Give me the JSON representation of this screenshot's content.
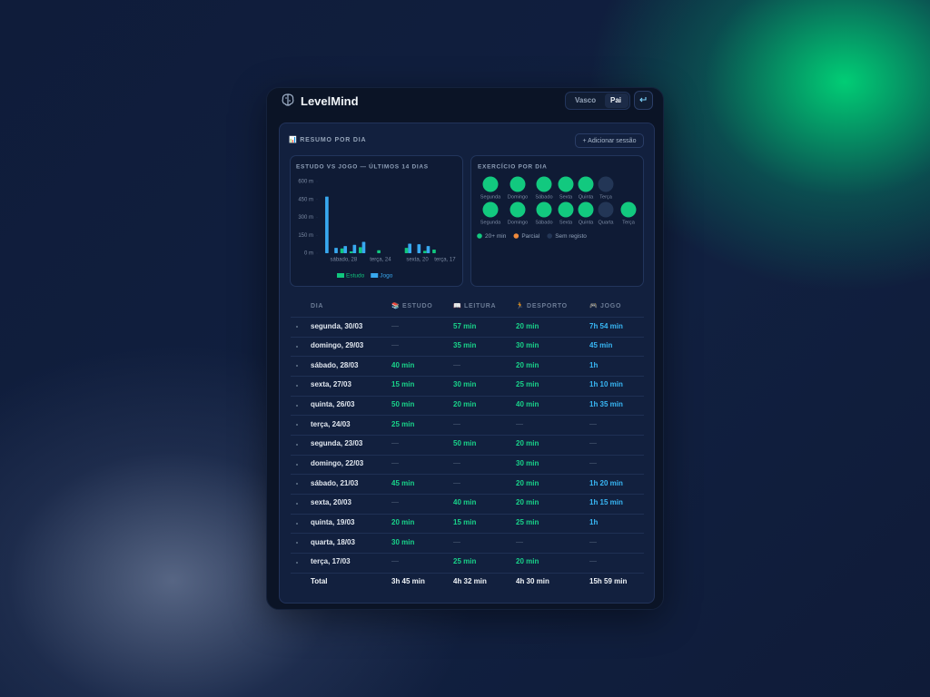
{
  "header": {
    "app_name": "LevelMind",
    "profiles": [
      "Vasco",
      "Pai"
    ]
  },
  "section_title": "📊 RESUMO POR DIA",
  "add_button": "+ Adicionar sessão",
  "chart_data": {
    "type": "bar",
    "title": "ESTUDO VS JOGO — ÚLTIMOS 14 DIAS",
    "categories": [
      null,
      null,
      "sábado, 28",
      null,
      null,
      null,
      "terça, 24",
      null,
      null,
      null,
      "sexta, 20",
      null,
      null,
      "terça, 17"
    ],
    "series": [
      {
        "name": "Estudo",
        "color": "#10c77e",
        "values": [
          0,
          0,
          40,
          15,
          50,
          0,
          25,
          0,
          0,
          45,
          0,
          20,
          30,
          0
        ]
      },
      {
        "name": "Jogo",
        "color": "#38a9f0",
        "values": [
          474,
          45,
          60,
          70,
          95,
          0,
          0,
          0,
          0,
          80,
          75,
          60,
          0,
          0
        ]
      }
    ],
    "ylim": [
      0,
      600
    ],
    "yticks": [
      {
        "value": 0,
        "label": "0 m"
      },
      {
        "value": 150,
        "label": "150 m"
      },
      {
        "value": 300,
        "label": "300 m"
      },
      {
        "value": 450,
        "label": "450 m"
      },
      {
        "value": 600,
        "label": "600 m"
      }
    ]
  },
  "exercise": {
    "title": "EXERCÍCIO POR DIA",
    "weeks": [
      [
        {
          "label": "Segunda",
          "color": "#12c97f"
        },
        {
          "label": "Domingo",
          "color": "#12c97f"
        },
        {
          "label": "Sábado",
          "color": "#12c97f"
        },
        {
          "label": "Sexta",
          "color": "#12c97f"
        },
        {
          "label": "Quinta",
          "color": "#12c97f"
        },
        {
          "label": "Terça",
          "color": "#233656"
        }
      ],
      [
        {
          "label": "Segunda",
          "color": "#12c97f"
        },
        {
          "label": "Domingo",
          "color": "#12c97f"
        },
        {
          "label": "Sábado",
          "color": "#12c97f"
        },
        {
          "label": "Sexta",
          "color": "#12c97f"
        },
        {
          "label": "Quinta",
          "color": "#12c97f"
        },
        {
          "label": "Quarta",
          "color": "#233656"
        },
        {
          "label": "Terça",
          "color": "#12c97f"
        }
      ]
    ],
    "legend": [
      {
        "label": "20+ min",
        "color": "#12c97f"
      },
      {
        "label": "Parcial",
        "color": "#f08a3c"
      },
      {
        "label": "Sem registo",
        "color": "#233656"
      }
    ]
  },
  "table": {
    "columns": [
      "DIA",
      "📚 ESTUDO",
      "📖 LEITURA",
      "🏃 DESPORTO",
      "🎮 JOGO"
    ],
    "rows": [
      [
        "segunda, 30/03",
        "—",
        "57 min",
        "20 min",
        "7h 54 min"
      ],
      [
        "domingo, 29/03",
        "—",
        "35 min",
        "30 min",
        "45 min"
      ],
      [
        "sábado, 28/03",
        "40 min",
        "—",
        "20 min",
        "1h"
      ],
      [
        "sexta, 27/03",
        "15 min",
        "30 min",
        "25 min",
        "1h 10 min"
      ],
      [
        "quinta, 26/03",
        "50 min",
        "20 min",
        "40 min",
        "1h 35 min"
      ],
      [
        "terça, 24/03",
        "25 min",
        "—",
        "—",
        "—"
      ],
      [
        "segunda, 23/03",
        "—",
        "50 min",
        "20 min",
        "—"
      ],
      [
        "domingo, 22/03",
        "—",
        "—",
        "30 min",
        "—"
      ],
      [
        "sábado, 21/03",
        "45 min",
        "—",
        "20 min",
        "1h 20 min"
      ],
      [
        "sexta, 20/03",
        "—",
        "40 min",
        "20 min",
        "1h 15 min"
      ],
      [
        "quinta, 19/03",
        "20 min",
        "15 min",
        "25 min",
        "1h"
      ],
      [
        "quarta, 18/03",
        "30 min",
        "—",
        "—",
        "—"
      ],
      [
        "terça, 17/03",
        "—",
        "25 min",
        "20 min",
        "—"
      ]
    ],
    "total": [
      "Total",
      "3h 45 min",
      "4h 32 min",
      "4h 30 min",
      "15h 59 min"
    ]
  }
}
